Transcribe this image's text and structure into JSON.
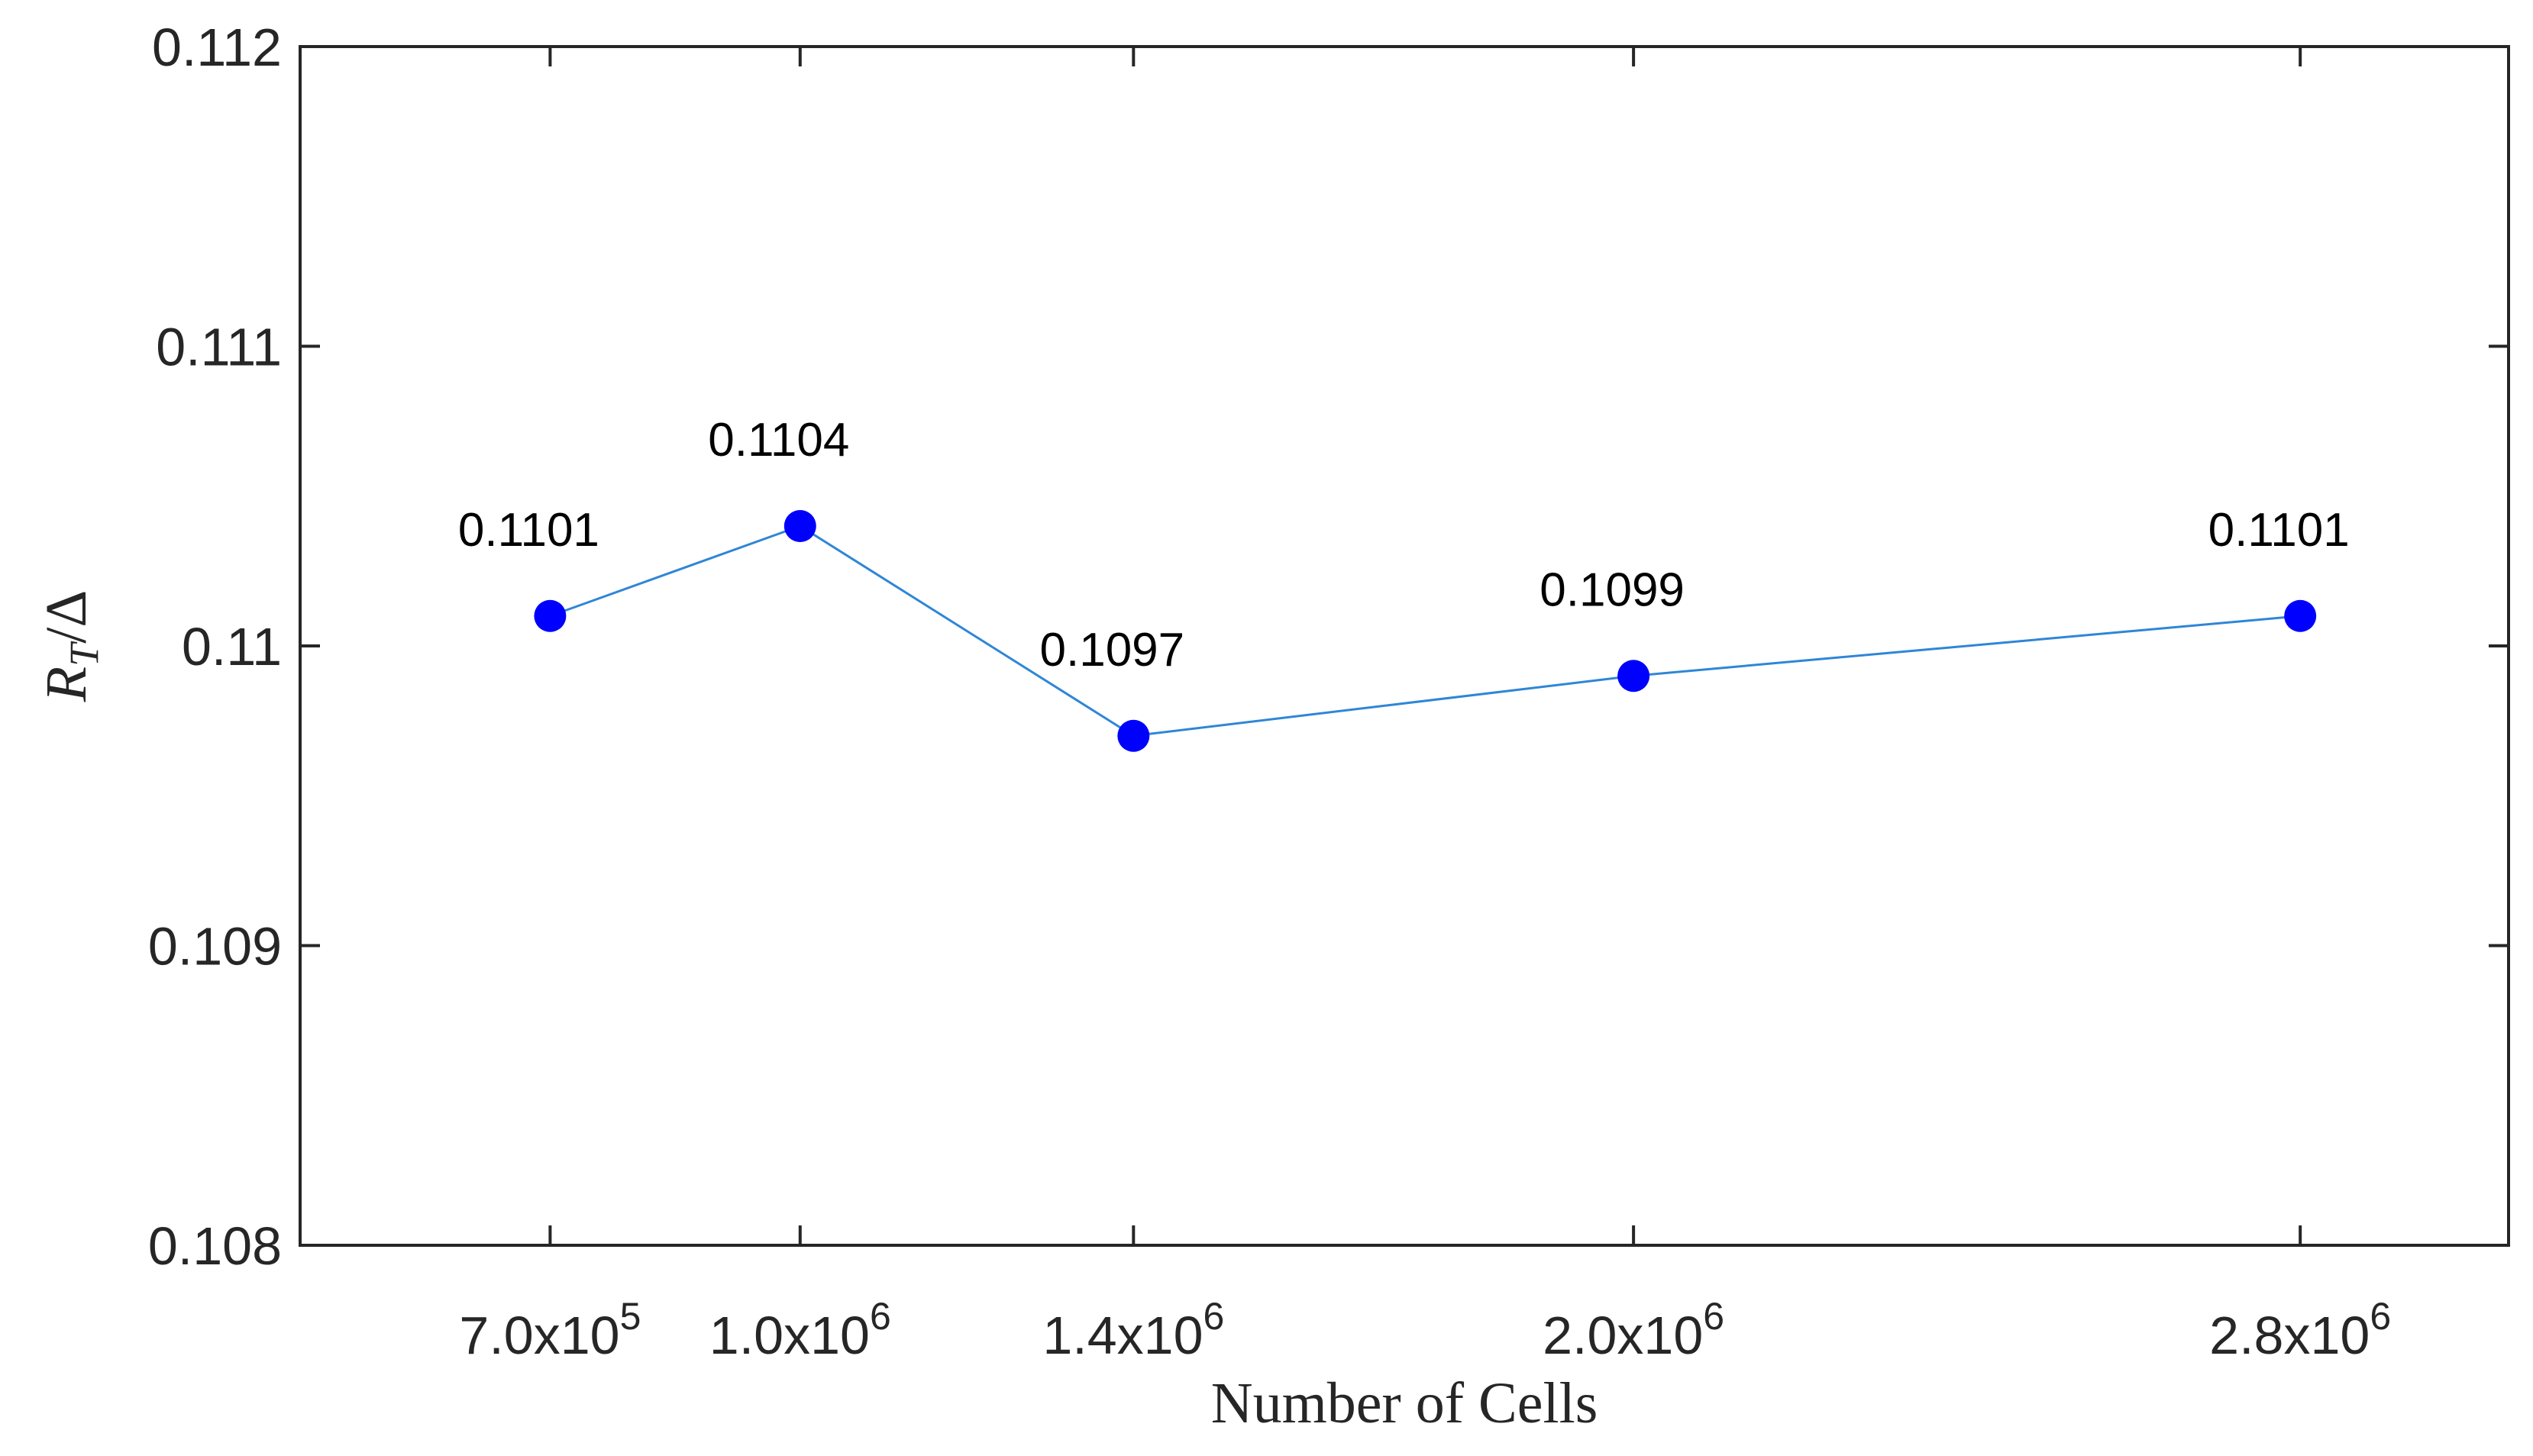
{
  "chart_data": {
    "type": "line",
    "title": "",
    "xlabel": "Number of Cells",
    "ylabel": {
      "base": "R",
      "subscript": "T",
      "rest": "/Δ"
    },
    "ylim": [
      0.108,
      0.112
    ],
    "yticks": [
      0.108,
      0.109,
      0.11,
      0.111,
      0.112
    ],
    "ytick_labels": [
      "0.108",
      "0.109",
      "0.11",
      "0.111",
      "0.112"
    ],
    "xlim": [
      400000,
      3050000
    ],
    "x": [
      700000,
      1000000,
      1400000,
      2000000,
      2800000
    ],
    "xtick_labels": [
      {
        "mantissa": "7.0x10",
        "exponent": "5"
      },
      {
        "mantissa": "1.0x10",
        "exponent": "6"
      },
      {
        "mantissa": "1.4x10",
        "exponent": "6"
      },
      {
        "mantissa": "2.0x10",
        "exponent": "6"
      },
      {
        "mantissa": "2.8x10",
        "exponent": "6"
      }
    ],
    "series": [
      {
        "name": "R_T/Δ",
        "values": [
          0.1101,
          0.1104,
          0.1097,
          0.1099,
          0.1101
        ],
        "labels": [
          "0.1101",
          "0.1104",
          "0.1097",
          "0.1099",
          "0.1101"
        ],
        "line_color": "#2F86D6",
        "marker_color": "#0000FF"
      }
    ],
    "grid": false,
    "legend": "none"
  }
}
